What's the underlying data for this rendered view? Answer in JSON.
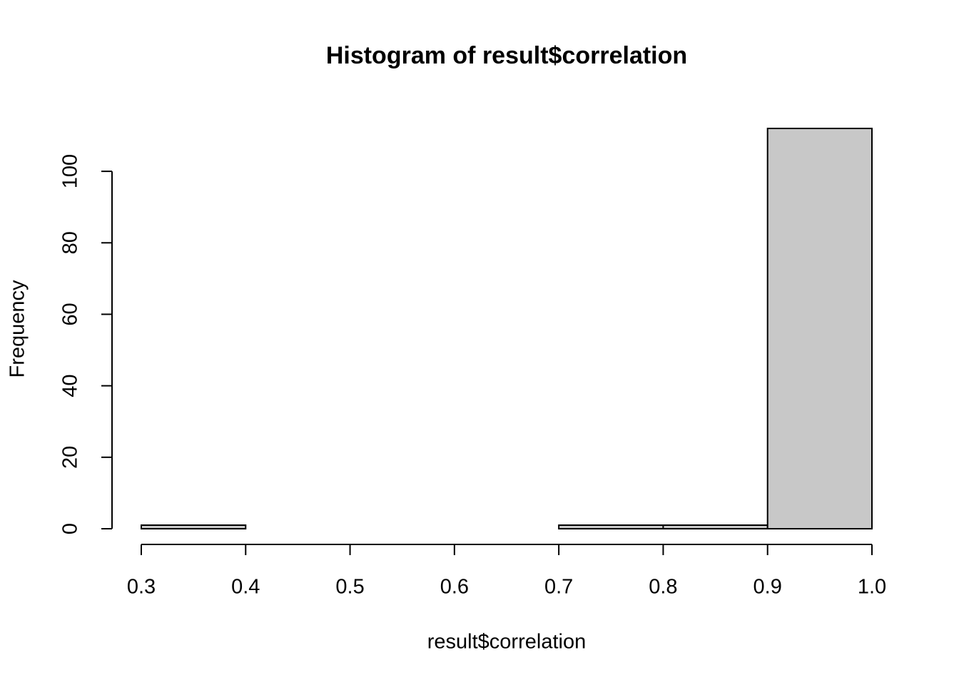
{
  "chart_data": {
    "type": "histogram",
    "title": "Histogram of result$correlation",
    "x_label": "result$correlation",
    "y_label": "Frequency",
    "bins": [
      0.3,
      0.4,
      0.5,
      0.6,
      0.7,
      0.8,
      0.9,
      1.0
    ],
    "values": [
      1,
      0,
      0,
      0,
      1,
      1,
      112
    ],
    "color": "#c8c8c8",
    "xlim": [
      0.3,
      1.0
    ],
    "ylim": [
      0,
      112
    ],
    "xticks": [
      0.3,
      0.4,
      0.5,
      0.6,
      0.7,
      0.8,
      0.9,
      {
        "value": 1.0,
        "label": "1.0"
      }
    ],
    "yticks": [
      0,
      20,
      40,
      60,
      80,
      100
    ]
  }
}
